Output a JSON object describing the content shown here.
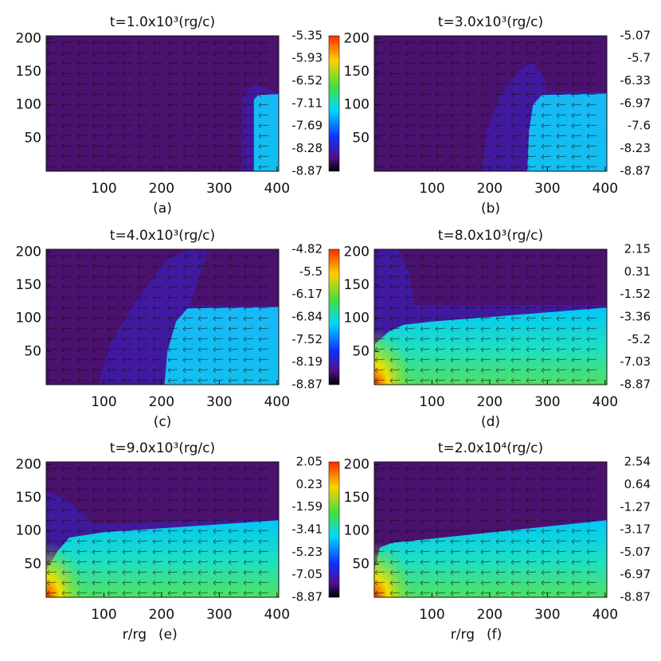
{
  "chart_data": [
    {
      "type": "heatmap",
      "title": "t=1.0x10³(rg/c)",
      "panel_label": "(a)",
      "xlim": [
        0,
        403
      ],
      "ylim": [
        0,
        204
      ],
      "xticks": [
        100,
        200,
        300,
        400
      ],
      "yticks": [
        50,
        100,
        150,
        200
      ],
      "clim": [
        -8.87,
        -5.35
      ],
      "cticks": [
        -5.35,
        -5.93,
        -6.52,
        -7.11,
        -7.69,
        -8.28,
        -8.87
      ]
    },
    {
      "type": "heatmap",
      "title": "t=3.0x10³(rg/c)",
      "panel_label": "(b)",
      "xlim": [
        0,
        403
      ],
      "ylim": [
        0,
        204
      ],
      "xticks": [
        100,
        200,
        300,
        400
      ],
      "yticks": [
        50,
        100,
        150,
        200
      ],
      "clim": [
        -8.87,
        -5.07
      ],
      "cticks": [
        -5.07,
        -5.7,
        -6.33,
        -6.97,
        -7.6,
        -8.23,
        -8.87
      ]
    },
    {
      "type": "heatmap",
      "title": "t=4.0x10³(rg/c)",
      "panel_label": "(c)",
      "xlim": [
        0,
        403
      ],
      "ylim": [
        0,
        204
      ],
      "xticks": [
        100,
        200,
        300,
        400
      ],
      "yticks": [
        50,
        100,
        150,
        200
      ],
      "clim": [
        -8.87,
        -4.82
      ],
      "cticks": [
        -4.82,
        -5.5,
        -6.17,
        -6.84,
        -7.52,
        -8.19,
        -8.87
      ]
    },
    {
      "type": "heatmap",
      "title": "t=8.0x10³(rg/c)",
      "panel_label": "(d)",
      "xlim": [
        0,
        403
      ],
      "ylim": [
        0,
        204
      ],
      "xticks": [
        100,
        200,
        300,
        400
      ],
      "yticks": [
        50,
        100,
        150,
        200
      ],
      "clim": [
        -8.87,
        2.15
      ],
      "cticks": [
        2.15,
        0.31,
        -1.52,
        -3.36,
        -5.2,
        -7.03,
        -8.87
      ]
    },
    {
      "type": "heatmap",
      "title": "t=9.0x10³(rg/c)",
      "xlabel": "r/rg",
      "panel_label": "(e)",
      "xlim": [
        0,
        403
      ],
      "ylim": [
        0,
        204
      ],
      "xticks": [
        100,
        200,
        300,
        400
      ],
      "yticks": [
        50,
        100,
        150,
        200
      ],
      "clim": [
        -8.87,
        2.05
      ],
      "cticks": [
        2.05,
        0.23,
        -1.59,
        -3.41,
        -5.23,
        -7.05,
        -8.87
      ]
    },
    {
      "type": "heatmap",
      "title": "t=2.0x10⁴(rg/c)",
      "xlabel": "r/rg",
      "panel_label": "(f)",
      "xlim": [
        0,
        403
      ],
      "ylim": [
        0,
        204
      ],
      "xticks": [
        100,
        200,
        300,
        400
      ],
      "yticks": [
        50,
        100,
        150,
        200
      ],
      "clim": [
        -8.87,
        2.54
      ],
      "cticks": [
        2.54,
        0.64,
        -1.27,
        -3.17,
        -5.07,
        -6.97,
        -8.87
      ]
    }
  ]
}
